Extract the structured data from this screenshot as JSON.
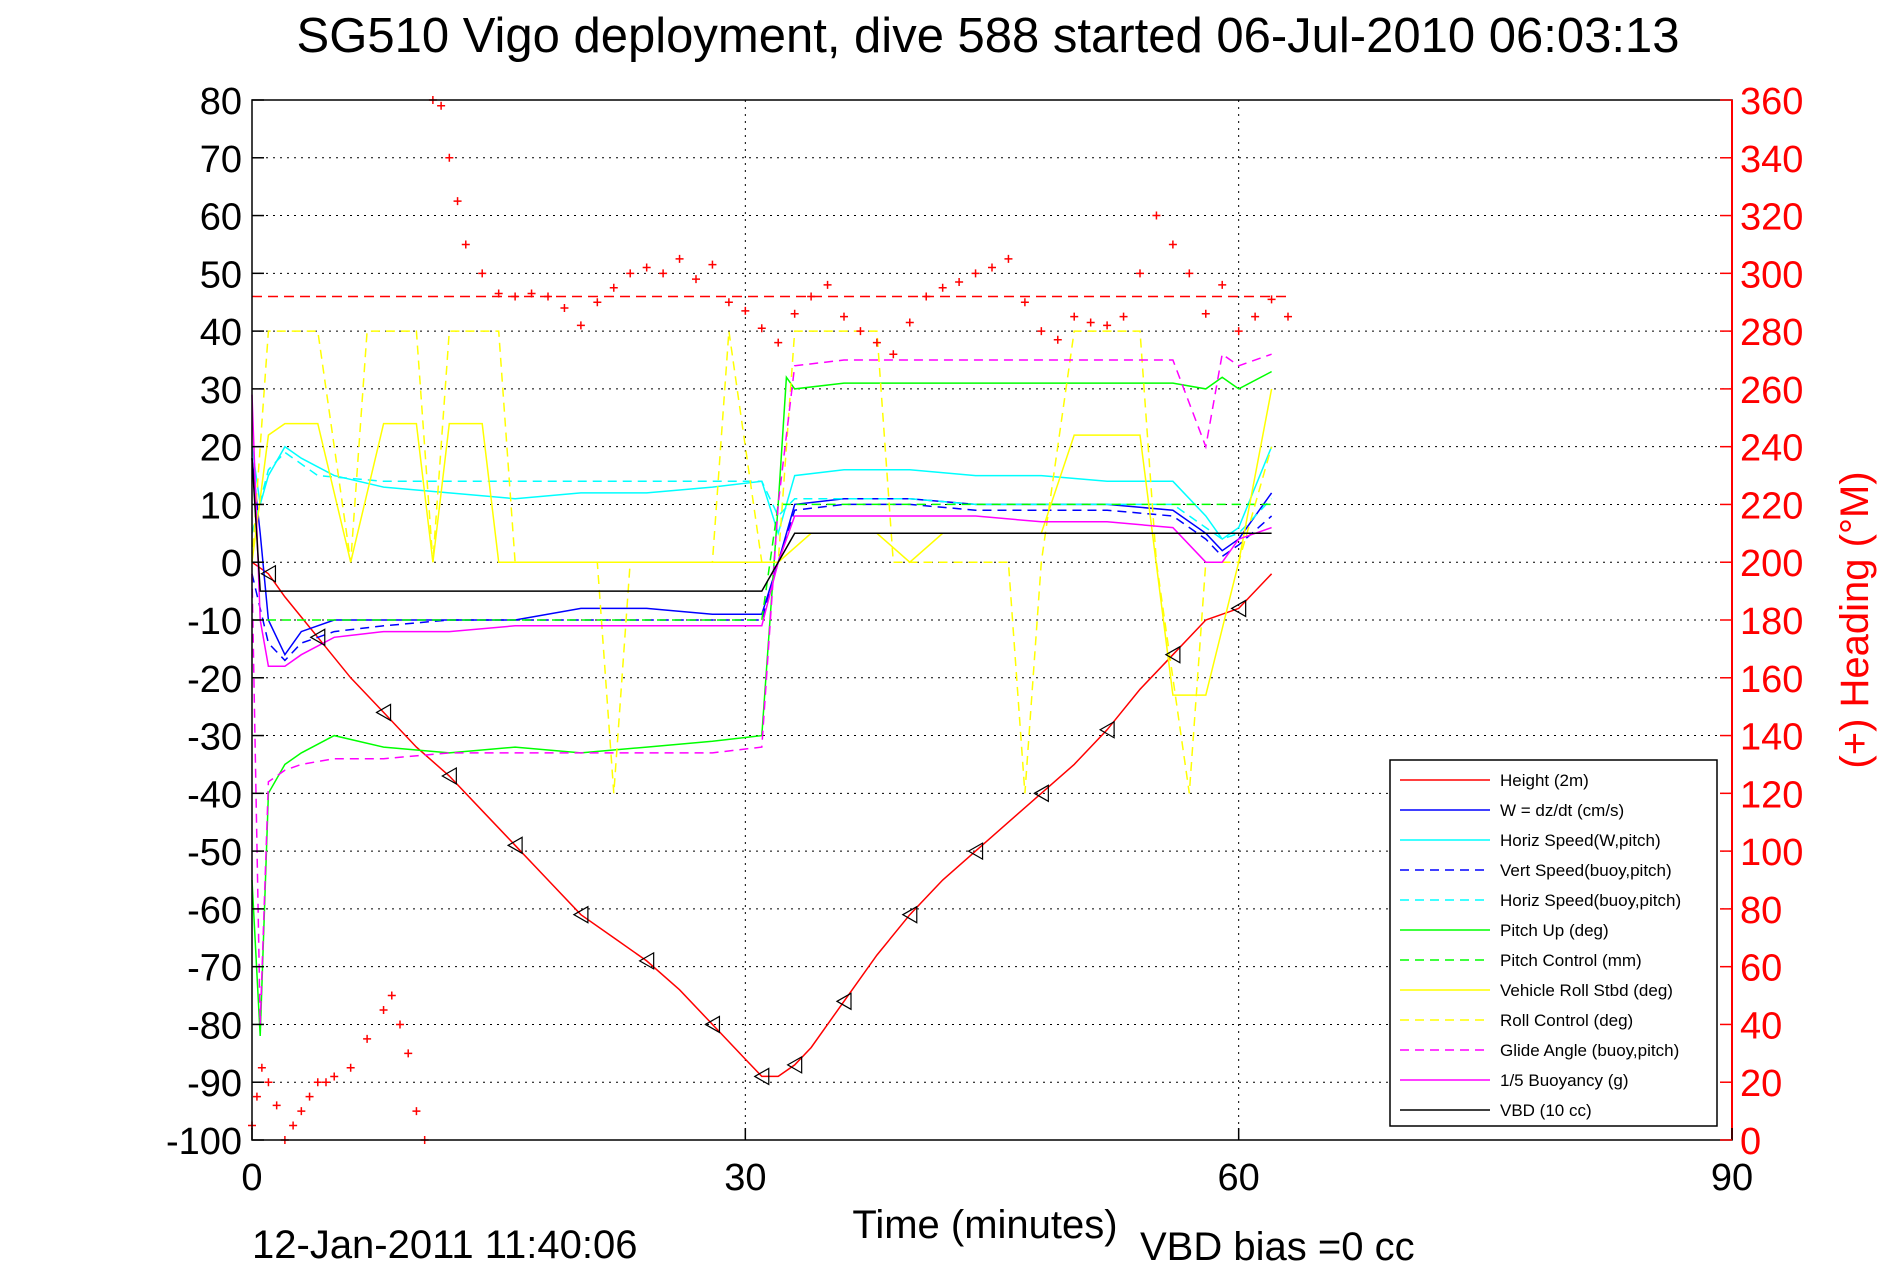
{
  "chart_data": {
    "type": "line",
    "title": "SG510 Vigo deployment, dive 588 started 06-Jul-2010 06:03:13",
    "xlabel": "Time (minutes)",
    "ylabel_right": "(+) Heading (°M)",
    "footer_date": "12-Jan-2011 11:40:06",
    "footer_bias": "VBD bias =0 cc",
    "xlim": [
      0,
      90
    ],
    "ylim": [
      -100,
      80
    ],
    "ylim_right": [
      0,
      360
    ],
    "grid": "dotted",
    "legend_position": "lower-right",
    "x_ticks": [
      "0",
      "30",
      "60",
      "90"
    ],
    "y_ticks": [
      "80",
      "70",
      "60",
      "50",
      "40",
      "30",
      "20",
      "10",
      "0",
      "-10",
      "-20",
      "-30",
      "-40",
      "-50",
      "-60",
      "-70",
      "-80",
      "-90",
      "-100"
    ],
    "y_ticks_right": [
      "360",
      "340",
      "320",
      "300",
      "280",
      "260",
      "240",
      "220",
      "200",
      "180",
      "160",
      "140",
      "120",
      "100",
      "80",
      "60",
      "40",
      "20",
      "0"
    ],
    "heading_reference": 292,
    "series": [
      {
        "name": "Height (2m)",
        "color": "#ff0000",
        "style": "solid",
        "x": [
          0,
          1,
          2,
          4,
          6,
          8,
          10,
          12,
          14,
          16,
          18,
          20,
          22,
          24,
          26,
          28,
          30,
          31,
          32,
          33,
          34,
          36,
          38,
          40,
          42,
          44,
          46,
          48,
          50,
          52,
          54,
          56,
          58,
          60,
          62
        ],
        "y": [
          0,
          -2,
          -6,
          -13,
          -20,
          -26,
          -32,
          -37,
          -43,
          -49,
          -55,
          -61,
          -65,
          -69,
          -74,
          -80,
          -86,
          -89,
          -89,
          -87,
          -84,
          -76,
          -68,
          -61,
          -55,
          -50,
          -45,
          -40,
          -35,
          -29,
          -22,
          -16,
          -10,
          -8,
          -2
        ]
      },
      {
        "name": "W = dz/dt (cm/s)",
        "color": "#0000ff",
        "style": "solid",
        "x": [
          0,
          0.5,
          1,
          2,
          3,
          5,
          8,
          12,
          16,
          20,
          24,
          28,
          31,
          32,
          33,
          36,
          40,
          44,
          48,
          52,
          56,
          58,
          59,
          60,
          62
        ],
        "y": [
          18,
          5,
          -10,
          -16,
          -12,
          -10,
          -10,
          -10,
          -10,
          -8,
          -8,
          -9,
          -9,
          0,
          10,
          11,
          11,
          10,
          10,
          10,
          9,
          5,
          2,
          4,
          12
        ]
      },
      {
        "name": "Horiz Speed(W,pitch)",
        "color": "#00ffff",
        "style": "solid",
        "x": [
          0,
          0.5,
          1,
          2,
          3,
          5,
          8,
          12,
          16,
          20,
          24,
          28,
          31,
          32,
          33,
          36,
          40,
          44,
          48,
          52,
          56,
          58,
          59,
          60,
          62
        ],
        "y": [
          20,
          10,
          15,
          20,
          18,
          15,
          13,
          12,
          11,
          12,
          12,
          13,
          14,
          5,
          15,
          16,
          16,
          15,
          15,
          14,
          14,
          8,
          4,
          6,
          20
        ]
      },
      {
        "name": "Vert Speed(buoy,pitch)",
        "color": "#0000ff",
        "style": "dashed",
        "x": [
          0,
          1,
          2,
          3,
          5,
          8,
          12,
          16,
          20,
          24,
          28,
          31,
          32,
          33,
          36,
          40,
          44,
          48,
          52,
          56,
          58,
          59,
          60,
          62
        ],
        "y": [
          -2,
          -14,
          -17,
          -14,
          -12,
          -11,
          -10,
          -10,
          -10,
          -10,
          -10,
          -10,
          0,
          9,
          10,
          10,
          9,
          9,
          9,
          8,
          4,
          1,
          3,
          8
        ]
      },
      {
        "name": "Horiz Speed(buoy,pitch)",
        "color": "#00ffff",
        "style": "dashed",
        "x": [
          0,
          1,
          2,
          4,
          8,
          12,
          16,
          20,
          24,
          28,
          31,
          32,
          33,
          36,
          40,
          44,
          48,
          52,
          56,
          58,
          59,
          60,
          62
        ],
        "y": [
          5,
          16,
          19,
          15,
          14,
          14,
          14,
          14,
          14,
          14,
          14,
          8,
          11,
          11,
          11,
          10,
          10,
          10,
          10,
          6,
          4,
          5,
          11
        ]
      },
      {
        "name": "Pitch Up (deg)",
        "color": "#00ff00",
        "style": "solid",
        "x": [
          0,
          0.5,
          1,
          2,
          3,
          5,
          8,
          12,
          16,
          20,
          24,
          28,
          31,
          32,
          32.5,
          33,
          36,
          40,
          44,
          48,
          52,
          56,
          58,
          59,
          60,
          62
        ],
        "y": [
          -55,
          -82,
          -40,
          -35,
          -33,
          -30,
          -32,
          -33,
          -32,
          -33,
          -32,
          -31,
          -30,
          10,
          32,
          30,
          31,
          31,
          31,
          31,
          31,
          31,
          30,
          32,
          30,
          33
        ]
      },
      {
        "name": "Pitch Control (mm)",
        "color": "#00ff00",
        "style": "dashed",
        "x": [
          0,
          2,
          4,
          8,
          12,
          16,
          20,
          24,
          28,
          31,
          32,
          33,
          36,
          40,
          44,
          48,
          52,
          56,
          58,
          60,
          62
        ],
        "y": [
          -10,
          -10,
          -10,
          -10,
          -10,
          -10,
          -10,
          -10,
          -10,
          -10,
          10,
          10,
          10,
          10,
          10,
          10,
          10,
          10,
          10,
          10,
          10
        ]
      },
      {
        "name": "Vehicle Roll Stbd (deg)",
        "color": "#ffff00",
        "style": "solid",
        "x": [
          0,
          1,
          2,
          4,
          6,
          8,
          10,
          11,
          12,
          14,
          15,
          16,
          20,
          22,
          24,
          26,
          28,
          30,
          32,
          34,
          38,
          40,
          42,
          44,
          46,
          48,
          50,
          52,
          54,
          56,
          58,
          60,
          62
        ],
        "y": [
          0,
          22,
          24,
          24,
          0,
          24,
          24,
          0,
          24,
          24,
          0,
          0,
          0,
          0,
          0,
          0,
          0,
          0,
          0,
          5,
          5,
          0,
          5,
          5,
          5,
          5,
          22,
          22,
          22,
          -23,
          -23,
          0,
          30
        ]
      },
      {
        "name": "Roll Control (deg)",
        "color": "#ffff00",
        "style": "dashed",
        "x": [
          0,
          1,
          2,
          4,
          6,
          7,
          10,
          11,
          12,
          15,
          16,
          21,
          22,
          23,
          28,
          29,
          31,
          32,
          33,
          38,
          39,
          46,
          47,
          48,
          50,
          52,
          54,
          55,
          57,
          58,
          60,
          62
        ],
        "y": [
          0,
          40,
          40,
          40,
          0,
          40,
          40,
          0,
          40,
          40,
          0,
          0,
          -40,
          0,
          0,
          40,
          0,
          0,
          40,
          40,
          0,
          0,
          -40,
          0,
          40,
          40,
          40,
          0,
          -40,
          0,
          0,
          20
        ]
      },
      {
        "name": "Glide Angle (buoy,pitch)",
        "color": "#ff00ff",
        "style": "dashed",
        "x": [
          0,
          0.5,
          1,
          2,
          3,
          5,
          8,
          12,
          16,
          20,
          24,
          28,
          31,
          32,
          33,
          36,
          40,
          44,
          48,
          52,
          56,
          58,
          59,
          60,
          62
        ],
        "y": [
          -2,
          -80,
          -38,
          -36,
          -35,
          -34,
          -34,
          -33,
          -33,
          -33,
          -33,
          -33,
          -32,
          10,
          34,
          35,
          35,
          35,
          35,
          35,
          35,
          20,
          36,
          34,
          36
        ]
      },
      {
        "name": "1/5 Buoyancy (g)",
        "color": "#ff00ff",
        "style": "solid",
        "x": [
          0,
          0.5,
          1,
          2,
          3,
          5,
          8,
          12,
          16,
          20,
          24,
          28,
          31,
          32,
          33,
          36,
          40,
          44,
          48,
          52,
          56,
          58,
          59,
          60,
          62
        ],
        "y": [
          29,
          -10,
          -18,
          -18,
          -16,
          -13,
          -12,
          -12,
          -11,
          -11,
          -11,
          -11,
          -11,
          0,
          8,
          8,
          8,
          8,
          7,
          7,
          6,
          0,
          0,
          4,
          6
        ]
      },
      {
        "name": "VBD (10 cc)",
        "color": "#000000",
        "style": "solid",
        "x": [
          0,
          0.5,
          1,
          3,
          10,
          20,
          30,
          31,
          32,
          33,
          40,
          50,
          58,
          59,
          60,
          62
        ],
        "y": [
          18,
          -5,
          -5,
          -5,
          -5,
          -5,
          -5,
          -5,
          0,
          5,
          5,
          5,
          5,
          5,
          5,
          5
        ]
      }
    ],
    "heading_series": {
      "name": "(+) Heading",
      "color": "#ff0000",
      "x": [
        0,
        0.3,
        0.6,
        1,
        1.5,
        2,
        2.5,
        3,
        3.5,
        4,
        4.5,
        5,
        6,
        7,
        8,
        8.5,
        9,
        9.5,
        10,
        10.5,
        11,
        11.5,
        12,
        12.5,
        13,
        14,
        15,
        16,
        17,
        18,
        19,
        20,
        21,
        22,
        23,
        24,
        25,
        26,
        27,
        28,
        29,
        30,
        31,
        32,
        33,
        34,
        35,
        36,
        37,
        38,
        39,
        40,
        41,
        42,
        43,
        44,
        45,
        46,
        47,
        48,
        49,
        50,
        51,
        52,
        53,
        54,
        55,
        56,
        57,
        58,
        59,
        60,
        61,
        62,
        63
      ],
      "y": [
        5,
        15,
        25,
        20,
        12,
        0,
        5,
        10,
        15,
        20,
        20,
        22,
        25,
        35,
        45,
        50,
        40,
        30,
        10,
        0,
        360,
        358,
        340,
        325,
        310,
        300,
        293,
        292,
        293,
        292,
        288,
        282,
        290,
        295,
        300,
        302,
        300,
        305,
        298,
        303,
        290,
        287,
        281,
        276,
        286,
        292,
        296,
        285,
        280,
        276,
        272,
        283,
        292,
        295,
        297,
        300,
        302,
        305,
        290,
        280,
        277,
        285,
        283,
        282,
        285,
        300,
        320,
        310,
        300,
        286,
        296,
        280,
        285,
        291,
        285
      ]
    }
  }
}
